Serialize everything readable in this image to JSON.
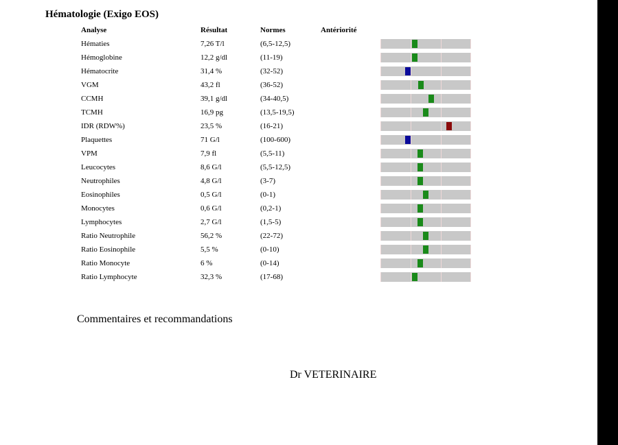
{
  "title": "Hématologie (Exigo EOS)",
  "headers": {
    "analyse": "Analyse",
    "result": "Résultat",
    "norms": "Normes",
    "previous": "Antériorité"
  },
  "colors": {
    "normal": "#1a8a1a",
    "low": "#0a0a9a",
    "high": "#8b0a0a",
    "bar_bg": "#c8c8c8"
  },
  "rows": [
    {
      "analyse": "Hématies",
      "result": "7,26 T/l",
      "norm": "(6,5-12,5)",
      "status": "normal",
      "level": 0.38
    },
    {
      "analyse": "Hémoglobine",
      "result": "12,2 g/dl",
      "norm": "(11-19)",
      "status": "normal",
      "level": 0.38
    },
    {
      "analyse": "Hématocrite",
      "result": "31,4 %",
      "norm": "(32-52)",
      "status": "low",
      "level": 0.3
    },
    {
      "analyse": "VGM",
      "result": "43,2 fl",
      "norm": "(36-52)",
      "status": "normal",
      "level": 0.45
    },
    {
      "analyse": "CCMH",
      "result": "39,1 g/dl",
      "norm": "(34-40,5)",
      "status": "normal",
      "level": 0.56
    },
    {
      "analyse": "TCMH",
      "result": "16,9 pg",
      "norm": "(13,5-19,5)",
      "status": "normal",
      "level": 0.5
    },
    {
      "analyse": "IDR (RDW%)",
      "result": "23,5 %",
      "norm": "(16-21)",
      "status": "high",
      "level": 0.76
    },
    {
      "analyse": "Plaquettes",
      "result": "71 G/l",
      "norm": "(100-600)",
      "status": "low",
      "level": 0.3
    },
    {
      "analyse": "VPM",
      "result": "7,9 fl",
      "norm": "(5,5-11)",
      "status": "normal",
      "level": 0.44
    },
    {
      "analyse": "Leucocytes",
      "result": "8,6 G/l",
      "norm": "(5,5-12,5)",
      "status": "normal",
      "level": 0.44
    },
    {
      "analyse": "Neutrophiles",
      "result": "4,8 G/l",
      "norm": "(3-7)",
      "status": "normal",
      "level": 0.44
    },
    {
      "analyse": "Eosinophiles",
      "result": "0,5 G/l",
      "norm": "(0-1)",
      "status": "normal",
      "level": 0.5
    },
    {
      "analyse": "Monocytes",
      "result": "0,6 G/l",
      "norm": "(0,2-1)",
      "status": "normal",
      "level": 0.44
    },
    {
      "analyse": "Lymphocytes",
      "result": "2,7 G/l",
      "norm": "(1,5-5)",
      "status": "normal",
      "level": 0.44
    },
    {
      "analyse": "Ratio Neutrophile",
      "result": "56,2 %",
      "norm": "(22-72)",
      "status": "normal",
      "level": 0.5
    },
    {
      "analyse": "Ratio Eosinophile",
      "result": "5,5 %",
      "norm": "(0-10)",
      "status": "normal",
      "level": 0.5
    },
    {
      "analyse": "Ratio Monocyte",
      "result": "6 %",
      "norm": "(0-14)",
      "status": "normal",
      "level": 0.44
    },
    {
      "analyse": "Ratio Lymphocyte",
      "result": "32,3 %",
      "norm": "(17-68)",
      "status": "normal",
      "level": 0.38
    }
  ],
  "comments_label": "Commentaires et recommandations",
  "signature": "Dr VETERINAIRE"
}
